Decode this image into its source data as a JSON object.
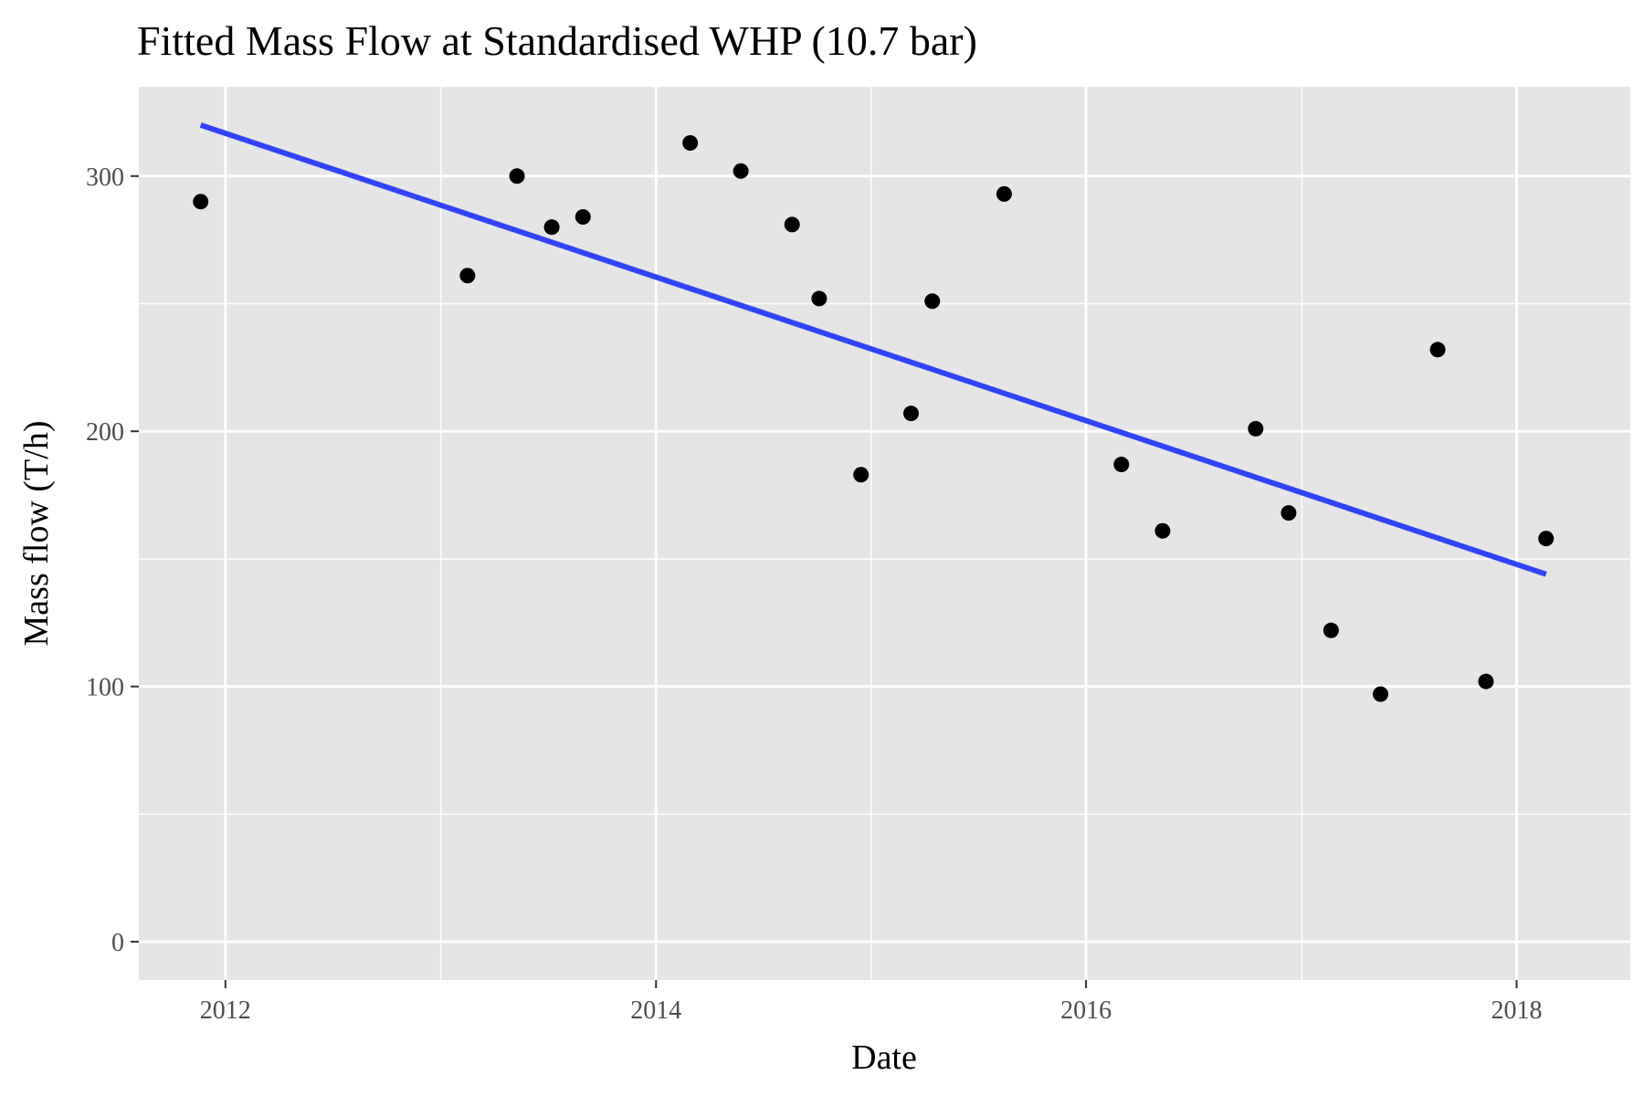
{
  "chart_data": {
    "type": "scatter",
    "title": "Fitted Mass Flow at Standardised WHP (10.7 bar)",
    "xlabel": "Date",
    "ylabel": "Mass flow (T/h)",
    "x_axis_type": "date",
    "xlim": [
      "2011-08-07",
      "2018-07-13"
    ],
    "ylim": [
      -15,
      335
    ],
    "x_ticks": [
      {
        "value": "2012-01-01",
        "label": "2012"
      },
      {
        "value": "2014-01-01",
        "label": "2014"
      },
      {
        "value": "2016-01-01",
        "label": "2016"
      },
      {
        "value": "2018-01-01",
        "label": "2018"
      }
    ],
    "y_ticks": [
      0,
      100,
      200,
      300
    ],
    "grid": true,
    "panel_background": "#e5e5e5",
    "points": [
      {
        "x": "2011-11-20",
        "y": 290
      },
      {
        "x": "2013-02-15",
        "y": 261
      },
      {
        "x": "2013-05-10",
        "y": 300
      },
      {
        "x": "2013-07-08",
        "y": 280
      },
      {
        "x": "2013-08-30",
        "y": 284
      },
      {
        "x": "2014-02-28",
        "y": 313
      },
      {
        "x": "2014-05-25",
        "y": 302
      },
      {
        "x": "2014-08-20",
        "y": 281
      },
      {
        "x": "2014-10-05",
        "y": 252
      },
      {
        "x": "2014-12-15",
        "y": 183
      },
      {
        "x": "2015-03-10",
        "y": 207
      },
      {
        "x": "2015-04-15",
        "y": 251
      },
      {
        "x": "2015-08-15",
        "y": 293
      },
      {
        "x": "2016-03-01",
        "y": 187
      },
      {
        "x": "2016-05-10",
        "y": 161
      },
      {
        "x": "2016-10-15",
        "y": 201
      },
      {
        "x": "2016-12-10",
        "y": 168
      },
      {
        "x": "2017-02-20",
        "y": 122
      },
      {
        "x": "2017-05-15",
        "y": 97
      },
      {
        "x": "2017-08-20",
        "y": 232
      },
      {
        "x": "2017-11-10",
        "y": 102
      },
      {
        "x": "2018-02-20",
        "y": 158
      }
    ],
    "fit_line": {
      "type": "linear",
      "start": {
        "x": "2011-11-20",
        "y": 320
      },
      "end": {
        "x": "2018-02-20",
        "y": 144
      }
    },
    "colors": {
      "points": "#000000",
      "fit_line": "#3344ff",
      "grid": "#ffffff",
      "tick_text": "#4d4d4d",
      "tick_marks": "#333333"
    }
  }
}
